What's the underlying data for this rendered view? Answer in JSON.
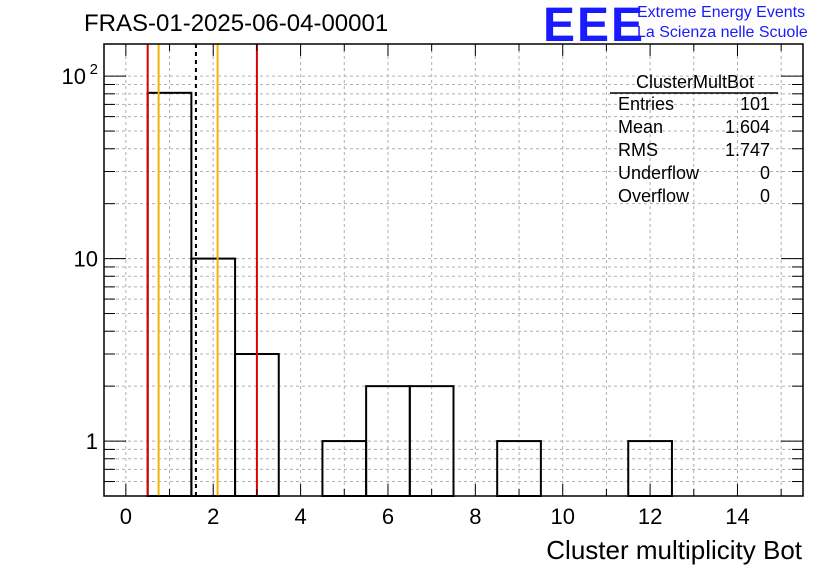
{
  "chart_data": {
    "type": "histogram",
    "title": "FRAS-01-2025-06-04-00001",
    "xlabel": "Cluster multiplicity Bot",
    "ylabel": "",
    "xlim": [
      -0.5,
      15.5
    ],
    "ylim": [
      0.5,
      150
    ],
    "yscale": "log",
    "grid": true,
    "bins": [
      {
        "x": 1,
        "value": 81
      },
      {
        "x": 2,
        "value": 10
      },
      {
        "x": 3,
        "value": 3
      },
      {
        "x": 4,
        "value": 0
      },
      {
        "x": 5,
        "value": 1
      },
      {
        "x": 6,
        "value": 2
      },
      {
        "x": 7,
        "value": 2
      },
      {
        "x": 8,
        "value": 0
      },
      {
        "x": 9,
        "value": 1
      },
      {
        "x": 10,
        "value": 0
      },
      {
        "x": 11,
        "value": 0
      },
      {
        "x": 12,
        "value": 1
      }
    ],
    "bin_width": 1,
    "x_ticks": [
      0,
      2,
      4,
      6,
      8,
      10,
      12,
      14
    ],
    "y_ticks": [
      {
        "value": 1,
        "label": "1"
      },
      {
        "value": 10,
        "label": "10"
      },
      {
        "value": 100,
        "label": "10",
        "sup": "2"
      }
    ],
    "vertical_lines": [
      {
        "x": 0.5,
        "color": "#e00000",
        "style": "solid"
      },
      {
        "x": 0.75,
        "color": "#f0b400",
        "style": "solid"
      },
      {
        "x": 1.604,
        "color": "#000000",
        "style": "dashed"
      },
      {
        "x": 2.1,
        "color": "#f0b400",
        "style": "solid"
      },
      {
        "x": 3.0,
        "color": "#e00000",
        "style": "solid"
      }
    ],
    "stats_box": {
      "title": "ClusterMultBot",
      "rows": [
        {
          "label": "Entries",
          "value": "101"
        },
        {
          "label": "Mean",
          "value": "1.604"
        },
        {
          "label": "RMS",
          "value": "1.747"
        },
        {
          "label": "Underflow",
          "value": "0"
        },
        {
          "label": "Overflow",
          "value": "0"
        }
      ]
    }
  },
  "logo": {
    "mark": "EEE",
    "line1": "Extreme Energy Events",
    "line2": "La Scienza nelle Scuole",
    "color": "#1a1aff"
  }
}
